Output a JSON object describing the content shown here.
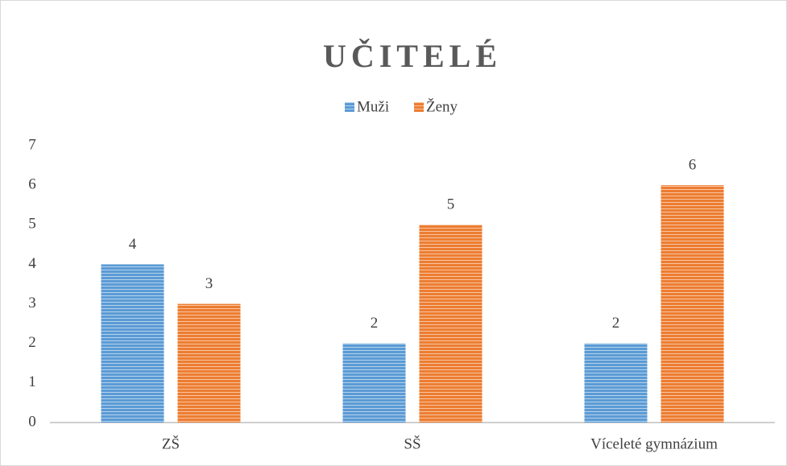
{
  "chart_data": {
    "type": "bar",
    "title": "UČITELÉ",
    "categories": [
      "ZŠ",
      "SŠ",
      "Víceleté gymnázium"
    ],
    "series": [
      {
        "name": "Muži",
        "color": "#5b9bd5",
        "values": [
          4,
          2,
          2
        ]
      },
      {
        "name": "Ženy",
        "color": "#ed7d31",
        "values": [
          3,
          5,
          6
        ]
      }
    ],
    "ylim": [
      0,
      7
    ],
    "yticks": [
      0,
      1,
      2,
      3,
      4,
      5,
      6,
      7
    ],
    "grid": false,
    "legend": "top"
  }
}
